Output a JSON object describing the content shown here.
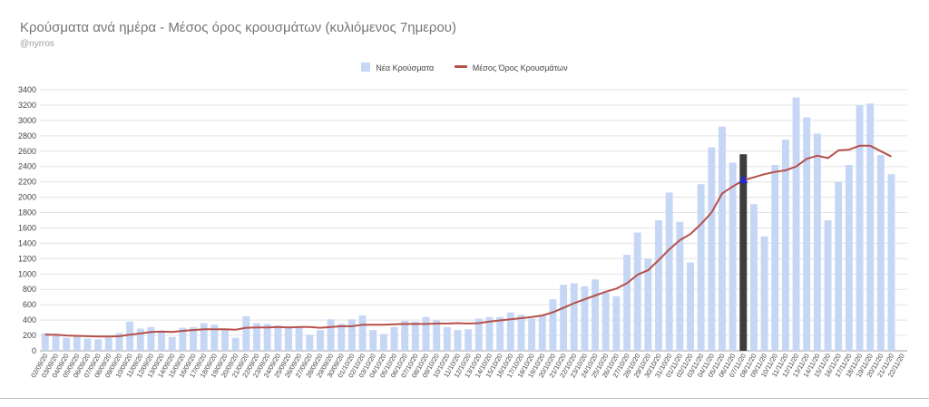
{
  "chart_data": {
    "type": "bar",
    "title": "Κρούσματα ανά ημέρα - Μέσος όρος κρουσμάτων (κυλιόμενος 7ημερου)",
    "subtitle": "@nyrros",
    "legend": {
      "position": "top",
      "bar_label": "Νέα Κρούσματα",
      "line_label": "Μέσος Όρος Κρουσμάτων"
    },
    "colors": {
      "bar": "#c6d7f5",
      "highlight_bar": "#3d3d3d",
      "line": "#b6504b",
      "marker": "#1f2bd1",
      "grid": "#e3e3e3",
      "axis_text": "#444444"
    },
    "ylim": [
      0,
      3400
    ],
    "yticks": [
      0,
      200,
      400,
      600,
      800,
      1000,
      1200,
      1400,
      1600,
      1800,
      2000,
      2200,
      2400,
      2600,
      2800,
      3000,
      3200,
      3400
    ],
    "grid": true,
    "categories": [
      "02/09/20",
      "03/09/20",
      "04/09/20",
      "05/09/20",
      "06/09/20",
      "07/09/20",
      "08/09/20",
      "09/09/20",
      "10/09/20",
      "11/09/20",
      "12/09/20",
      "13/09/20",
      "14/09/20",
      "15/09/20",
      "16/09/20",
      "17/09/20",
      "18/09/20",
      "19/09/20",
      "20/09/20",
      "21/09/20",
      "22/09/20",
      "23/09/20",
      "24/09/20",
      "25/09/20",
      "26/09/20",
      "27/09/20",
      "28/09/20",
      "29/09/20",
      "30/09/20",
      "01/10/20",
      "02/10/20",
      "03/10/20",
      "04/10/20",
      "05/10/20",
      "06/10/20",
      "07/10/20",
      "08/10/20",
      "09/10/20",
      "10/10/20",
      "11/10/20",
      "12/10/20",
      "13/10/20",
      "14/10/20",
      "15/10/20",
      "16/10/20",
      "17/10/20",
      "18/10/20",
      "19/10/20",
      "20/10/20",
      "21/10/20",
      "22/10/20",
      "23/10/20",
      "24/10/20",
      "25/10/20",
      "26/10/20",
      "27/10/20",
      "28/10/20",
      "29/10/20",
      "30/10/20",
      "31/10/20",
      "01/11/20",
      "02/11/20",
      "03/11/20",
      "04/11/20",
      "05/11/20",
      "06/11/20",
      "07/11/20",
      "08/11/20",
      "09/11/20",
      "10/11/20",
      "11/11/20",
      "12/11/20",
      "13/11/20",
      "14/11/20",
      "15/11/20",
      "16/11/20",
      "17/11/20",
      "18/11/20",
      "19/11/20",
      "20/11/20",
      "21/11/20",
      "22/11/20"
    ],
    "series": [
      {
        "name": "Νέα Κρούσματα",
        "type": "bar",
        "values": [
          230,
          210,
          170,
          190,
          160,
          150,
          170,
          230,
          380,
          290,
          310,
          250,
          180,
          300,
          310,
          360,
          340,
          280,
          170,
          450,
          360,
          350,
          330,
          300,
          310,
          210,
          270,
          410,
          350,
          410,
          460,
          270,
          220,
          310,
          390,
          380,
          440,
          400,
          310,
          270,
          280,
          420,
          440,
          440,
          500,
          470,
          420,
          460,
          670,
          860,
          880,
          840,
          930,
          760,
          710,
          1250,
          1540,
          1200,
          1700,
          2060,
          1680,
          1150,
          2170,
          2650,
          2920,
          2450,
          2560,
          1910,
          1490,
          2420,
          2750,
          3300,
          3040,
          2830,
          1700,
          2200,
          2420,
          3200,
          3220,
          2550,
          2300,
          null
        ],
        "highlight_index": 66
      },
      {
        "name": "Μέσος Όρος Κρουσμάτων",
        "type": "line",
        "values": [
          210,
          210,
          200,
          195,
          190,
          185,
          185,
          190,
          210,
          225,
          245,
          250,
          245,
          260,
          270,
          280,
          280,
          280,
          275,
          300,
          305,
          305,
          310,
          305,
          310,
          310,
          300,
          310,
          320,
          320,
          340,
          340,
          340,
          345,
          350,
          350,
          350,
          355,
          355,
          360,
          355,
          360,
          380,
          395,
          410,
          425,
          440,
          460,
          500,
          560,
          620,
          670,
          720,
          770,
          810,
          880,
          990,
          1050,
          1180,
          1320,
          1440,
          1520,
          1650,
          1800,
          2050,
          2140,
          2220,
          2260,
          2300,
          2330,
          2350,
          2400,
          2500,
          2540,
          2510,
          2610,
          2620,
          2670,
          2670,
          2600,
          2530,
          null
        ],
        "marker_index": 66
      }
    ]
  }
}
